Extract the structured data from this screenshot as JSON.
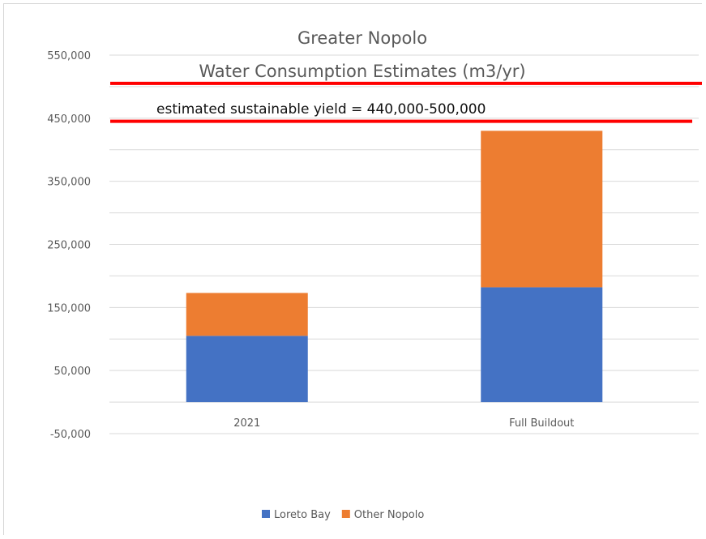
{
  "chart_data": {
    "type": "bar",
    "stacked": true,
    "title": "Greater Nopolo",
    "subtitle": "Water Consumption Estimates (m3/yr)",
    "categories": [
      "2021",
      "Full Buildout"
    ],
    "series": [
      {
        "name": "Loreto Bay",
        "values": [
          105000,
          182000
        ],
        "color": "#4472c4"
      },
      {
        "name": "Other Nopolo",
        "values": [
          68000,
          248000
        ],
        "color": "#ed7d31"
      }
    ],
    "ylim": [
      -50000,
      550000
    ],
    "yticks": [
      "550,000",
      "450,000",
      "350,000",
      "250,000",
      "150,000",
      "50,000",
      "-50,000"
    ],
    "ytick_values": [
      550000,
      450000,
      350000,
      250000,
      150000,
      50000,
      -50000
    ],
    "grid": true,
    "legend_position": "bottom",
    "annotation": "estimated sustainable yield  = 440,000-500,000",
    "reference_lines": [
      {
        "value": 500000,
        "color": "#ff0000"
      },
      {
        "value": 440000,
        "color": "#ff0000"
      }
    ]
  }
}
